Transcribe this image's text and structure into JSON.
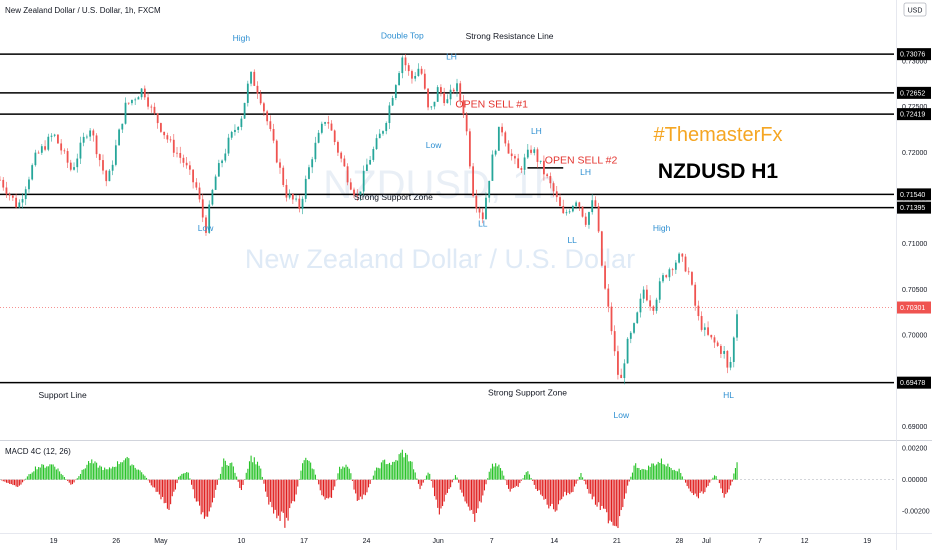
{
  "header": {
    "symbol_title": "New Zealand Dollar / U.S. Dollar, 1h, FXCM",
    "currency_badge": "USD"
  },
  "watermark": {
    "ticker": "NZDUSD, 1h",
    "name": "New Zealand Dollar / U.S. Dollar"
  },
  "brand": {
    "tag": "#ThemasterFx",
    "pair_title": "NZDUSD H1",
    "tag_color": "#f5a623"
  },
  "colors": {
    "up": "#26a69a",
    "down": "#ef5350",
    "macd_pos": "#27c227",
    "macd_neg": "#e01d1d",
    "annotation_blue": "#2e8fd1",
    "annotation_red": "#e3342f",
    "current_price": "#ef5350"
  },
  "chart_data": [
    {
      "type": "line",
      "series_style": "candlestick",
      "y_axis_ticks": [
        "0.73000",
        "0.72500",
        "0.72000",
        "0.71500",
        "0.71000",
        "0.70500",
        "0.70000",
        "0.69500",
        "0.69000"
      ],
      "ylim": [
        0.6885,
        0.7345
      ],
      "x_axis_ticks": [
        "19",
        "26",
        "May",
        "10",
        "17",
        "24",
        "Jun",
        "7",
        "14",
        "21",
        "28",
        "Jul",
        "7",
        "12",
        "19"
      ],
      "x_tick_days": [
        -12,
        -5,
        0,
        9,
        16,
        23,
        31,
        37,
        44,
        51,
        58,
        61,
        67,
        72,
        79
      ],
      "data_end_day": 64.5,
      "x_range_days": [
        -18,
        82
      ],
      "current_price": "0.70301",
      "path_key": [
        [
          -18,
          0.717
        ],
        [
          -16,
          0.714
        ],
        [
          -14,
          0.7195
        ],
        [
          -12,
          0.722
        ],
        [
          -10,
          0.718
        ],
        [
          -8,
          0.723
        ],
        [
          -6,
          0.7165
        ],
        [
          -4,
          0.725
        ],
        [
          -2,
          0.727
        ],
        [
          -1,
          0.7245
        ],
        [
          1,
          0.721
        ],
        [
          2.5,
          0.719
        ],
        [
          4,
          0.716
        ],
        [
          5,
          0.7115
        ],
        [
          6,
          0.717
        ],
        [
          7.5,
          0.721
        ],
        [
          9,
          0.724
        ],
        [
          10,
          0.7285
        ],
        [
          11,
          0.7265
        ],
        [
          12,
          0.723
        ],
        [
          14,
          0.7155
        ],
        [
          15.5,
          0.714
        ],
        [
          17,
          0.72
        ],
        [
          18.5,
          0.724
        ],
        [
          19.5,
          0.721
        ],
        [
          21,
          0.717
        ],
        [
          22,
          0.715
        ],
        [
          23,
          0.7185
        ],
        [
          25,
          0.723
        ],
        [
          27,
          0.7305
        ],
        [
          28,
          0.728
        ],
        [
          29,
          0.7295
        ],
        [
          30,
          0.724
        ],
        [
          31,
          0.727
        ],
        [
          32,
          0.7255
        ],
        [
          33,
          0.7275
        ],
        [
          34,
          0.724
        ],
        [
          35,
          0.715
        ],
        [
          36,
          0.713
        ],
        [
          37,
          0.719
        ],
        [
          38,
          0.723
        ],
        [
          39,
          0.72
        ],
        [
          40,
          0.718
        ],
        [
          41.5,
          0.7205
        ],
        [
          43,
          0.7175
        ],
        [
          44,
          0.7155
        ],
        [
          45,
          0.713
        ],
        [
          46.5,
          0.715
        ],
        [
          47.5,
          0.7125
        ],
        [
          48.5,
          0.715
        ],
        [
          49,
          0.7105
        ],
        [
          49.5,
          0.706
        ],
        [
          50.5,
          0.7
        ],
        [
          51,
          0.696
        ],
        [
          51.5,
          0.695
        ],
        [
          52,
          0.6985
        ],
        [
          53,
          0.701
        ],
        [
          54,
          0.705
        ],
        [
          55,
          0.703
        ],
        [
          56,
          0.706
        ],
        [
          57,
          0.7075
        ],
        [
          58,
          0.7085
        ],
        [
          59,
          0.707
        ],
        [
          60,
          0.702
        ],
        [
          61,
          0.7
        ],
        [
          62,
          0.699
        ],
        [
          63,
          0.698
        ],
        [
          63.5,
          0.6955
        ],
        [
          64,
          0.699
        ],
        [
          64.5,
          0.703
        ]
      ],
      "levels": [
        {
          "price": "0.73076",
          "value": 0.73076
        },
        {
          "price": "0.72652",
          "value": 0.72652
        },
        {
          "price": "0.72419",
          "value": 0.72419
        },
        {
          "price": "0.71540",
          "value": 0.7154
        },
        {
          "price": "0.71395",
          "value": 0.71395
        },
        {
          "price": "0.69478",
          "value": 0.69478
        }
      ],
      "short_lines": [
        {
          "value": 0.7183,
          "day_from": 41,
          "day_to": 45
        }
      ],
      "annotations": [
        {
          "text": "High",
          "color": "blue",
          "day": 9,
          "value": 0.7322
        },
        {
          "text": "Double Top",
          "color": "blue",
          "day": 27,
          "value": 0.7325
        },
        {
          "text": "Strong Resistance Line",
          "color": "dark",
          "day": 39,
          "value": 0.7324
        },
        {
          "text": "LH",
          "color": "blue",
          "day": 32.5,
          "value": 0.7302
        },
        {
          "text": "OPEN SELL #1",
          "color": "red",
          "day": 37,
          "value": 0.7249
        },
        {
          "text": "LH",
          "color": "blue",
          "day": 42,
          "value": 0.722
        },
        {
          "text": "Low",
          "color": "blue",
          "day": 30.5,
          "value": 0.7205
        },
        {
          "text": "OPEN SELL #2",
          "color": "red",
          "day": 47,
          "value": 0.7188
        },
        {
          "text": "LH",
          "color": "blue",
          "day": 47.5,
          "value": 0.7175
        },
        {
          "text": "Strong Support Zone",
          "color": "dark",
          "day": 26,
          "value": 0.7148
        },
        {
          "text": "Low",
          "color": "blue",
          "day": 5,
          "value": 0.7114
        },
        {
          "text": "LL",
          "color": "blue",
          "day": 36,
          "value": 0.7119
        },
        {
          "text": "LL",
          "color": "blue",
          "day": 46,
          "value": 0.7101
        },
        {
          "text": "High",
          "color": "blue",
          "day": 56,
          "value": 0.7114
        },
        {
          "text": "Support Line",
          "color": "dark",
          "day": -11,
          "value": 0.6931
        },
        {
          "text": "Strong Support Zone",
          "color": "dark",
          "day": 41,
          "value": 0.6934
        },
        {
          "text": "HL",
          "color": "blue",
          "day": 63.5,
          "value": 0.6931
        },
        {
          "text": "Low",
          "color": "blue",
          "day": 51.5,
          "value": 0.6909
        }
      ]
    },
    {
      "type": "bar",
      "title": "MACD 4C (12, 26)",
      "y_axis_ticks": [
        "0.00200",
        "0.00000",
        "-0.00200"
      ],
      "ylim": [
        -0.0032,
        0.0022
      ],
      "peak_key": [
        [
          -18,
          0.0
        ],
        [
          -16,
          -0.0005
        ],
        [
          -14,
          0.0008
        ],
        [
          -12,
          0.001
        ],
        [
          -10,
          -0.0004
        ],
        [
          -8,
          0.0012
        ],
        [
          -6,
          0.0006
        ],
        [
          -4,
          0.0014
        ],
        [
          -2,
          0.0004
        ],
        [
          0,
          -0.0012
        ],
        [
          1,
          -0.0018
        ],
        [
          2,
          0.0002
        ],
        [
          3,
          0.0006
        ],
        [
          4,
          -0.0016
        ],
        [
          5,
          -0.0024
        ],
        [
          6,
          -0.001
        ],
        [
          7,
          0.0012
        ],
        [
          8,
          0.001
        ],
        [
          9,
          -0.0008
        ],
        [
          10,
          0.0015
        ],
        [
          11,
          0.001
        ],
        [
          12,
          -0.0014
        ],
        [
          13,
          -0.0022
        ],
        [
          14,
          -0.0028
        ],
        [
          15,
          -0.0012
        ],
        [
          16,
          0.0014
        ],
        [
          17,
          0.0008
        ],
        [
          18,
          -0.001
        ],
        [
          19,
          -0.0014
        ],
        [
          20,
          0.0008
        ],
        [
          21,
          0.001
        ],
        [
          22,
          -0.0016
        ],
        [
          23,
          -0.0008
        ],
        [
          24,
          0.0006
        ],
        [
          25,
          0.0012
        ],
        [
          26,
          0.001
        ],
        [
          27,
          0.0018
        ],
        [
          28,
          0.0012
        ],
        [
          29,
          -0.0006
        ],
        [
          30,
          0.0006
        ],
        [
          31,
          -0.0022
        ],
        [
          32,
          -0.001
        ],
        [
          33,
          0.0004
        ],
        [
          34,
          -0.0016
        ],
        [
          35,
          -0.0026
        ],
        [
          36,
          -0.001
        ],
        [
          37,
          0.001
        ],
        [
          38,
          0.0008
        ],
        [
          39,
          -0.0008
        ],
        [
          40,
          -0.0004
        ],
        [
          41,
          0.0006
        ],
        [
          42,
          -0.0006
        ],
        [
          43,
          -0.0014
        ],
        [
          44,
          -0.002
        ],
        [
          45,
          -0.001
        ],
        [
          46,
          -0.0008
        ],
        [
          47,
          0.0004
        ],
        [
          48,
          -0.001
        ],
        [
          49,
          -0.0018
        ],
        [
          50,
          -0.0024
        ],
        [
          51,
          -0.003
        ],
        [
          52,
          -0.0008
        ],
        [
          53,
          0.001
        ],
        [
          54,
          0.0006
        ],
        [
          55,
          0.001
        ],
        [
          56,
          0.0012
        ],
        [
          57,
          0.0008
        ],
        [
          58,
          0.0006
        ],
        [
          59,
          -0.0006
        ],
        [
          60,
          -0.0012
        ],
        [
          61,
          -0.0006
        ],
        [
          62,
          0.0004
        ],
        [
          63,
          -0.001
        ],
        [
          63.8,
          -0.0004
        ],
        [
          64.5,
          0.0015
        ]
      ]
    }
  ]
}
